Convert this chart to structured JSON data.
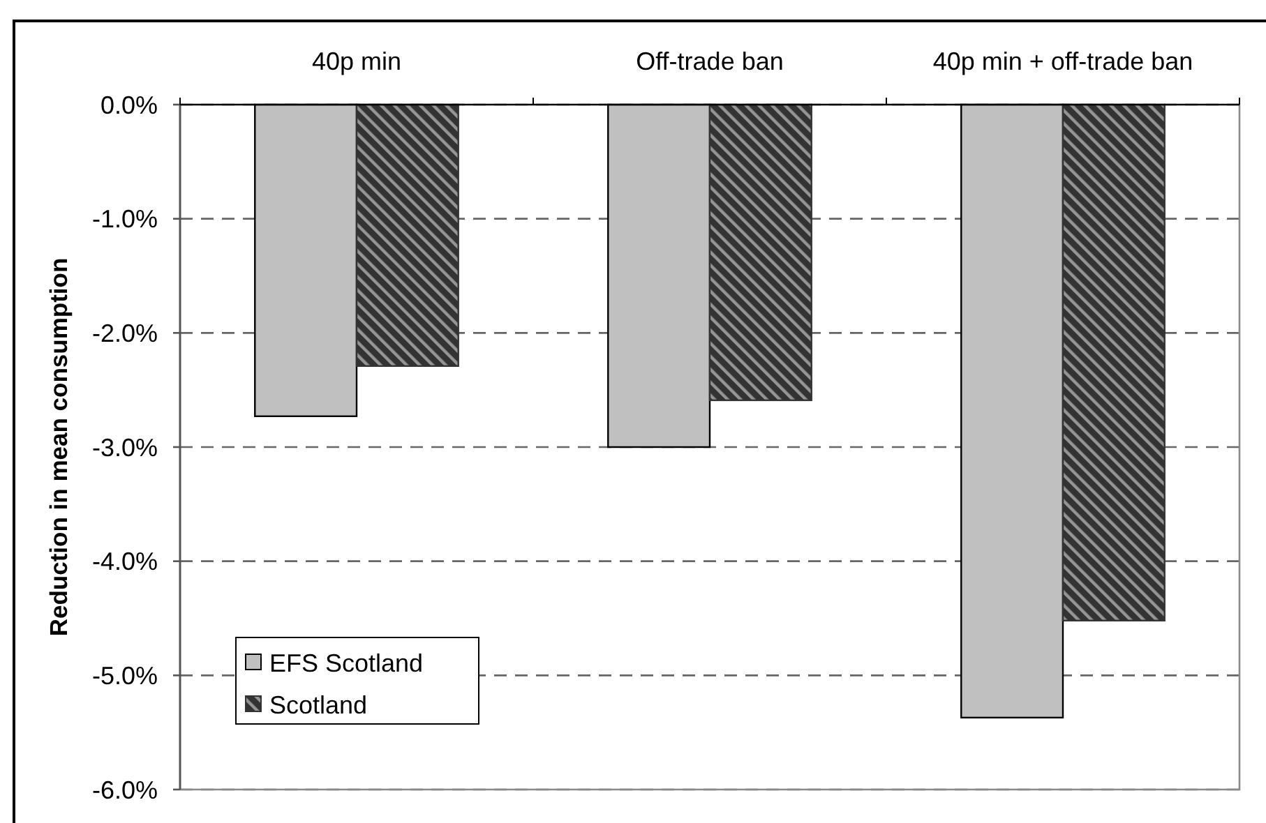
{
  "chart_data": {
    "type": "bar",
    "ylabel": "Reduction in mean consumption",
    "categories": [
      "40p min",
      "Off-trade ban",
      "40p min + off-trade ban"
    ],
    "series": [
      {
        "name": "EFS Scotland",
        "color": "#c0c0c0",
        "values": [
          -2.73,
          -3.0,
          -5.37
        ]
      },
      {
        "name": "Scotland",
        "color": "#333333",
        "values": [
          -2.29,
          -2.59,
          -4.52
        ]
      }
    ],
    "ylim": [
      -6,
      0
    ],
    "yticks": [
      {
        "value": 0,
        "label": "0.0%"
      },
      {
        "value": -1,
        "label": "-1.0%"
      },
      {
        "value": -2,
        "label": "-2.0%"
      },
      {
        "value": -3,
        "label": "-3.0%"
      },
      {
        "value": -4,
        "label": "-4.0%"
      },
      {
        "value": -5,
        "label": "-5.0%"
      },
      {
        "value": -6,
        "label": "-6.0%"
      }
    ],
    "grid": "y",
    "legend": "bottom left"
  }
}
